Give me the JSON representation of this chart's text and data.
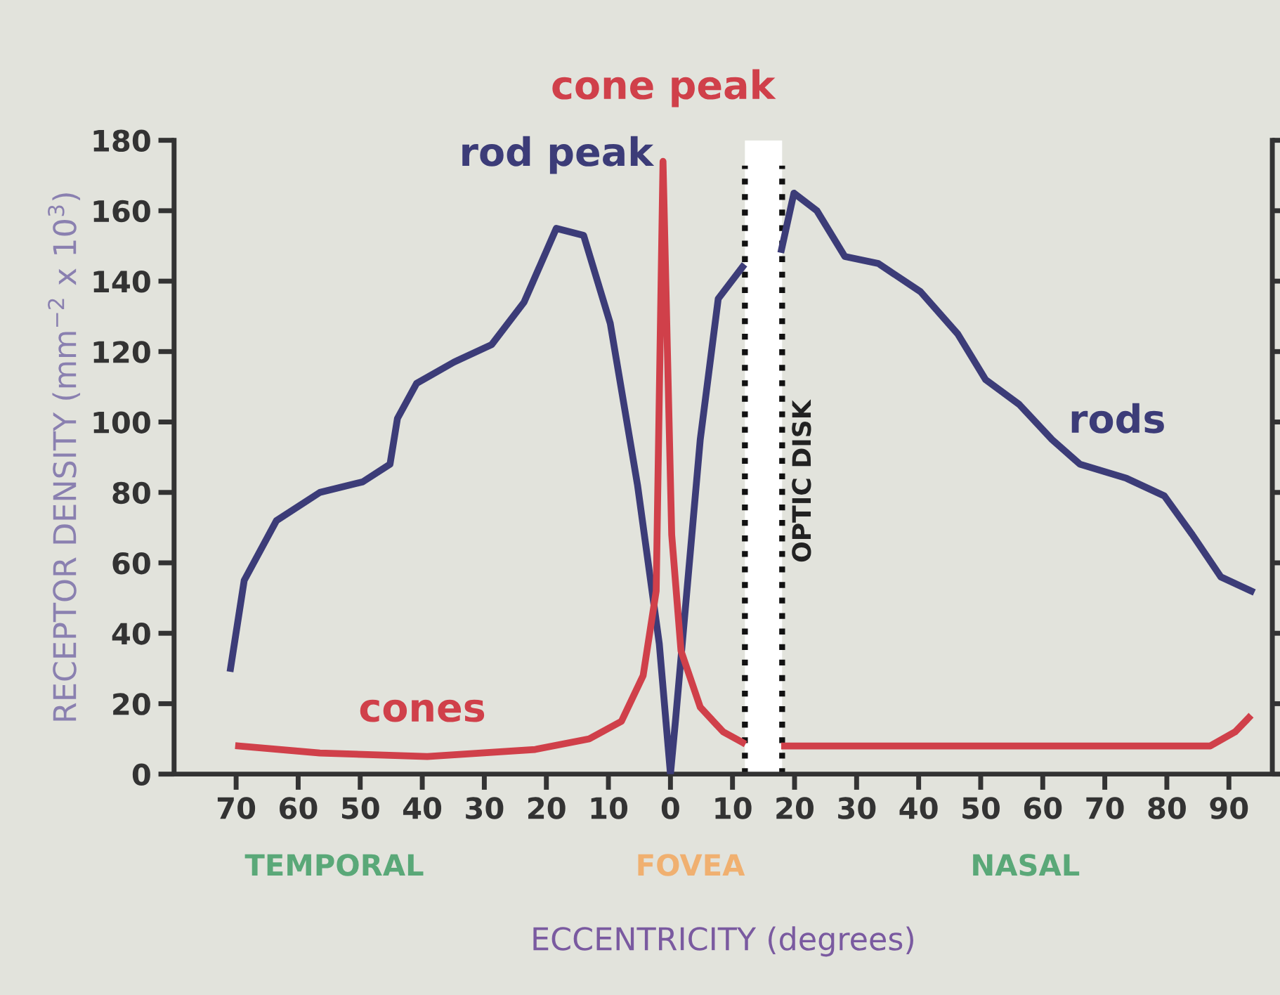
{
  "chart_data": {
    "type": "line",
    "xlabel": "ECCENTRICITY (degrees)",
    "ylabel": "RECEPTOR DENSITY (mm$^{−2}$ x 10$^{3}$)",
    "xlim": [
      -80,
      97
    ],
    "ylim": [
      0,
      180
    ],
    "xticks": [
      {
        "value": -70,
        "label": "70"
      },
      {
        "value": -60,
        "label": "60"
      },
      {
        "value": -50,
        "label": "50"
      },
      {
        "value": -40,
        "label": "40"
      },
      {
        "value": -30,
        "label": "30"
      },
      {
        "value": -20,
        "label": "20"
      },
      {
        "value": -10,
        "label": "10"
      },
      0,
      10,
      20,
      30,
      40,
      50,
      60,
      70,
      80,
      90
    ],
    "yticks": [
      0,
      20,
      40,
      60,
      80,
      100,
      120,
      140,
      160,
      180
    ],
    "grid": false,
    "legend": false,
    "marker": "none",
    "line_style": "solid",
    "series": [
      {
        "name": "rods",
        "color": "#3c3c78",
        "x": [
          -70.9,
          -68.7,
          -63.5,
          -56.5,
          -49.6,
          -45.2,
          -44,
          -40.9,
          -34.9,
          -28.8,
          -23.6,
          -18.4,
          -14,
          -9.7,
          -5.3,
          -1.8,
          0,
          0.8,
          4.8,
          7.7,
          11.6,
          14,
          17.9,
          19.9,
          23.6,
          28.1,
          33.5,
          40.3,
          46.3,
          50.8,
          56.2,
          61.5,
          66,
          73.5,
          79.6,
          84.1,
          88.7,
          93.6
        ],
        "values": [
          30,
          55,
          72,
          80,
          83,
          88,
          101,
          111,
          117,
          122,
          134,
          155,
          153,
          128,
          82,
          37,
          0,
          15,
          95,
          135,
          144,
          null,
          149,
          165,
          160,
          147,
          145,
          137,
          125,
          112,
          105,
          95,
          88,
          84,
          79,
          68,
          56,
          52
        ]
      },
      {
        "name": "cones",
        "color": "#d0404a",
        "x": [
          -69.6,
          -56.5,
          -39.2,
          -21.8,
          -13.1,
          -7.9,
          -4.4,
          -2.3,
          -1.2,
          0.2,
          1.7,
          4.8,
          8.5,
          11.6,
          14,
          18.4,
          38.8,
          69,
          87,
          91,
          93.2
        ],
        "values": [
          8,
          6,
          5,
          7,
          10,
          15,
          28,
          52,
          174,
          68,
          35,
          19,
          12,
          9,
          null,
          8,
          8,
          8,
          8,
          12,
          16
        ]
      }
    ],
    "bands": [
      {
        "axis": "x",
        "from": 12,
        "to": 18,
        "label": "OPTIC DISK",
        "color": "#ffffff"
      }
    ],
    "ref_lines": [
      {
        "axis": "x",
        "value": 12,
        "color": "#111111",
        "line_style": "dotted"
      },
      {
        "axis": "x",
        "value": 18,
        "color": "#111111",
        "line_style": "dotted"
      }
    ],
    "annotations": [
      {
        "text": "rod peak",
        "x": -18.4,
        "y": 155
      },
      {
        "text": "cone peak",
        "x": -1.2,
        "y": 174
      },
      "TEMPORAL",
      "FOVEA",
      "NASAL"
    ]
  }
}
